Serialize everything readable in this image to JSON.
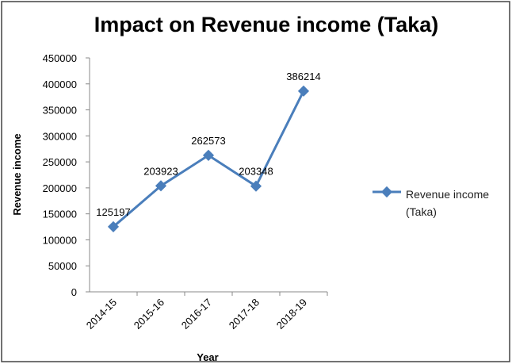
{
  "chart_data": {
    "type": "line",
    "title": "Impact on Revenue  income (Taka)",
    "x_label": "Year",
    "y_label": "Revenue income",
    "categories": [
      "2014-15",
      "2015-16",
      "2016-17",
      "2017-18",
      "2018-19"
    ],
    "series": [
      {
        "name": "Revenue  income (Taka)",
        "color": "#4a7ebb",
        "values": [
          125197,
          203923,
          262573,
          203348,
          386214
        ]
      }
    ],
    "ylim": [
      0,
      450000
    ],
    "yticks": [
      0,
      50000,
      100000,
      150000,
      200000,
      250000,
      300000,
      350000,
      400000,
      450000
    ],
    "grid": false,
    "legend": "right"
  }
}
